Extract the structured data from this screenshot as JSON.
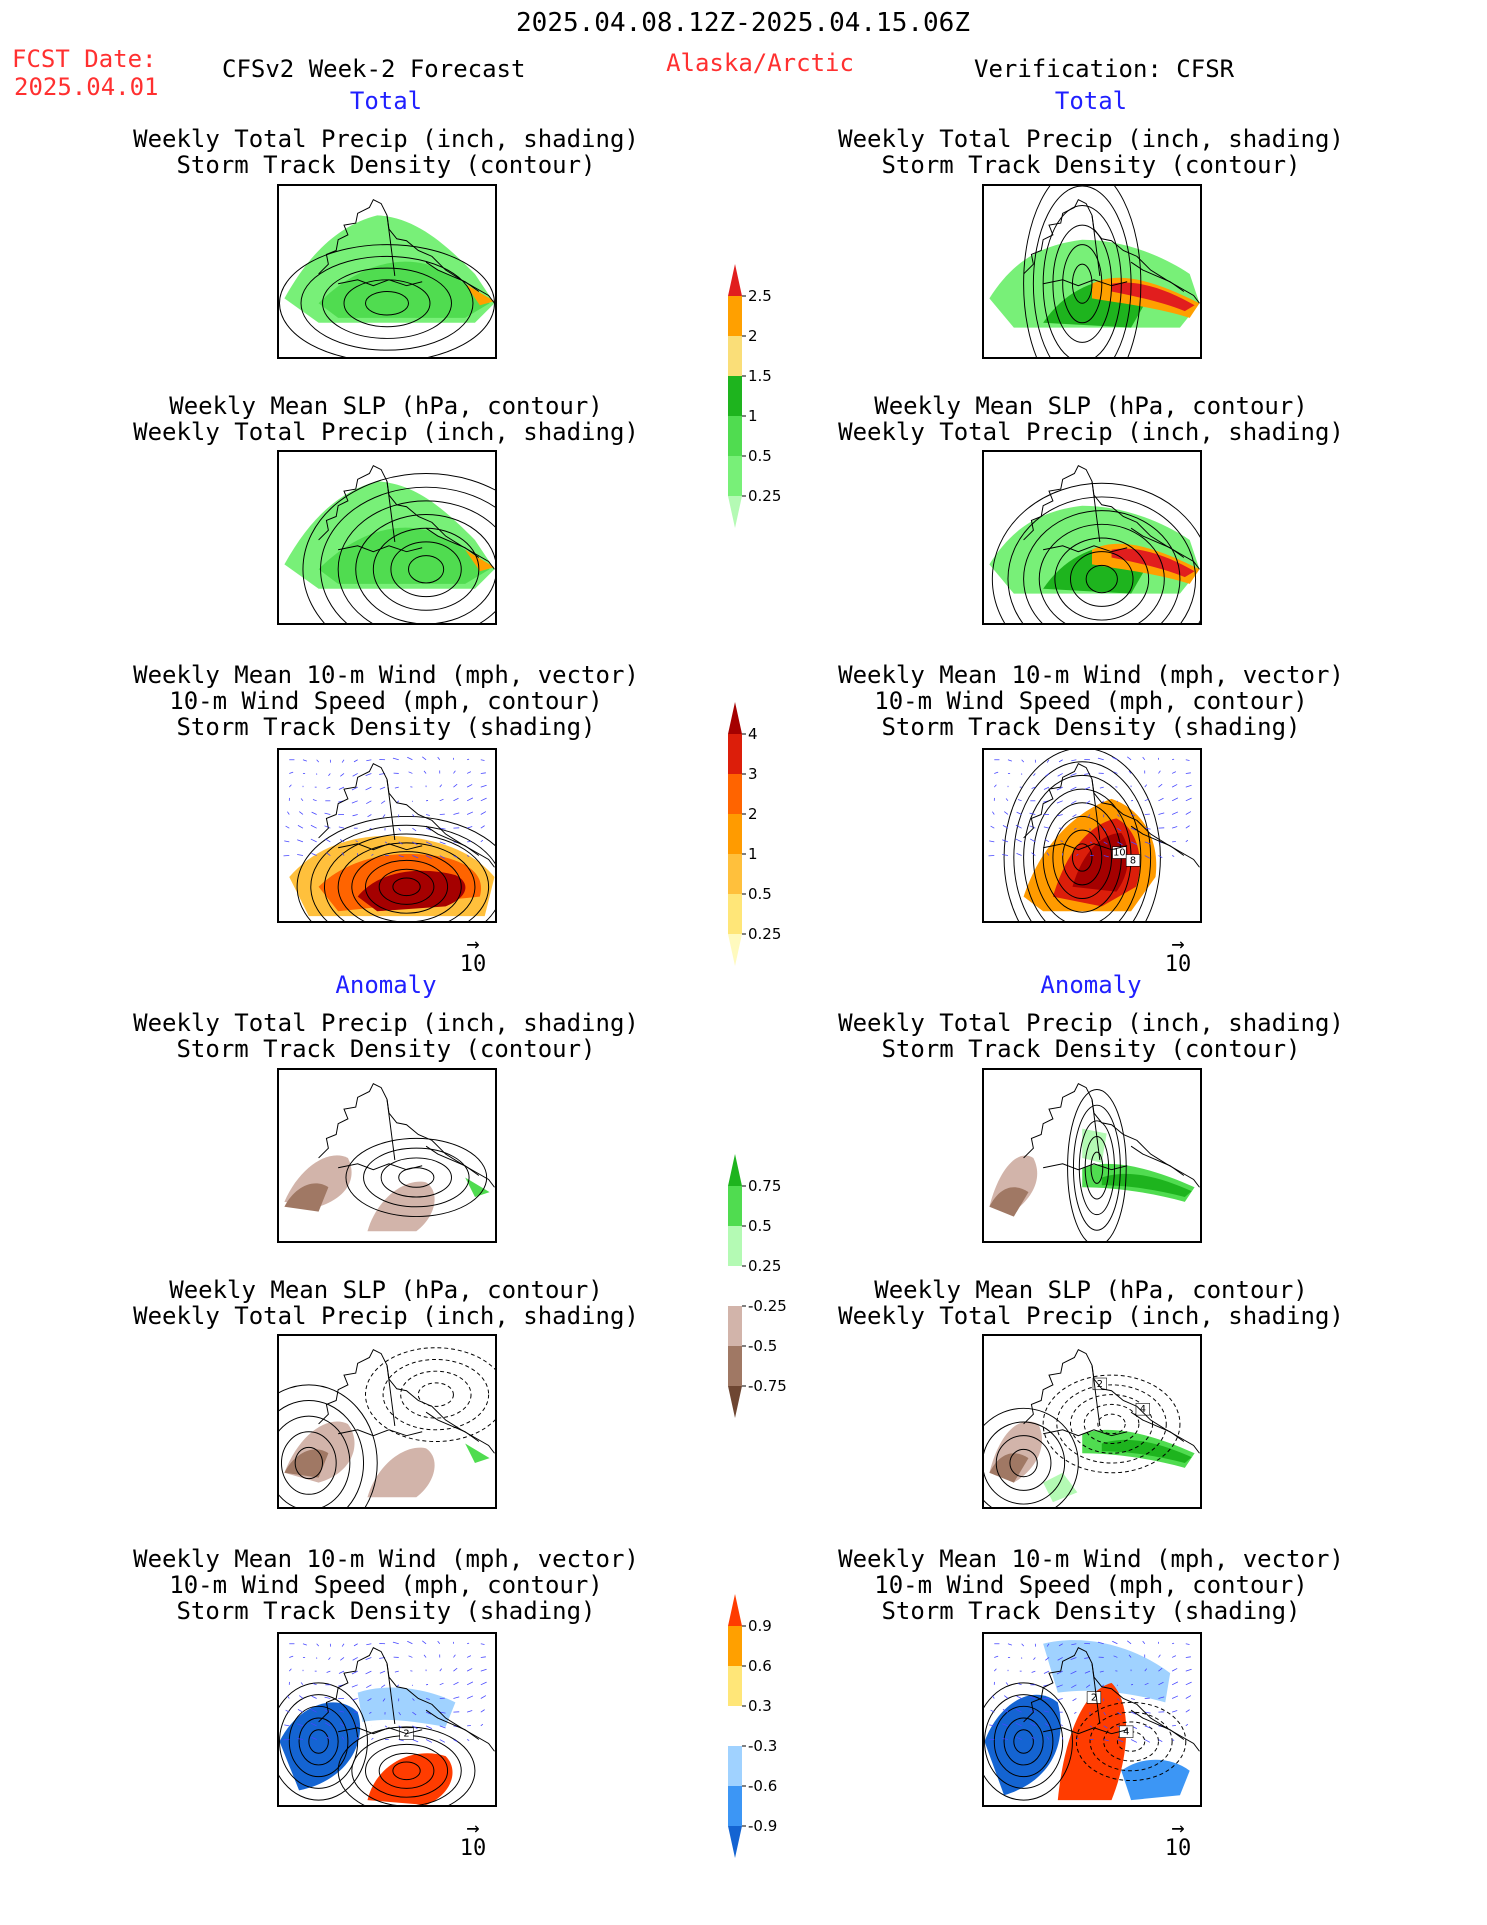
{
  "header": {
    "date_range": "2025.04.08.12Z-2025.04.15.06Z",
    "fcst_label": "FCST Date:",
    "fcst_date": "2025.04.01",
    "model_label": "CFSv2 Week-2 Forecast",
    "region": "Alaska/Arctic",
    "verification": "Verification: CFSR"
  },
  "sections": {
    "total": "Total",
    "anomaly": "Anomaly"
  },
  "panel_titles": {
    "precip_storm": "Weekly Total Precip (inch, shading)\nStorm Track Density (contour)",
    "slp_precip": "Weekly Mean SLP (hPa, contour)\nWeekly Total Precip (inch, shading)",
    "wind_storm": "Weekly Mean 10-m Wind (mph, vector)\n10-m Wind Speed (mph, contour)\nStorm Track Density (shading)"
  },
  "vector_reference": "10",
  "contour_labels": {
    "cfsr_total_wind": [
      "10",
      "8"
    ],
    "cfsr_anom_slp": [
      "2",
      "4"
    ],
    "cfsr_anom_wind": [
      "2",
      "4"
    ],
    "fcst_anom_wind": [
      "2"
    ]
  },
  "colors": {
    "fcst_red": "#ff3030",
    "section_blue": "#2020ff"
  },
  "chart_data": [
    {
      "type": "heatmap",
      "name": "colorbar_total_precip",
      "levels": [
        "0.25",
        "0.5",
        "1",
        "1.5",
        "2",
        "2.5"
      ],
      "colors": [
        "#b4fab4",
        "#78f078",
        "#50dc50",
        "#1eb41e",
        "#fade78",
        "#ffa000",
        "#e11e1e"
      ]
    },
    {
      "type": "heatmap",
      "name": "colorbar_total_storm_density",
      "levels": [
        "0.25",
        "0.5",
        "1",
        "2",
        "3",
        "4"
      ],
      "colors": [
        "#fffabe",
        "#ffe678",
        "#ffc03c",
        "#ff9b00",
        "#ff6400",
        "#dc1e0a",
        "#a50000"
      ]
    },
    {
      "type": "heatmap",
      "name": "colorbar_anomaly_precip",
      "levels": [
        "-0.75",
        "-0.5",
        "-0.25",
        "0.25",
        "0.5",
        "0.75"
      ],
      "colors": [
        "#6e4632",
        "#a07864",
        "#d2b4aa",
        "#ffffff",
        "#b4fab4",
        "#50dc50",
        "#1eb41e"
      ]
    },
    {
      "type": "heatmap",
      "name": "colorbar_anomaly_storm_density",
      "levels": [
        "-0.9",
        "-0.6",
        "-0.3",
        "0.3",
        "0.6",
        "0.9"
      ],
      "colors": [
        "#1464d2",
        "#3c96f5",
        "#a0d2ff",
        "#ffffff",
        "#ffe678",
        "#ffa000",
        "#ff3c00"
      ]
    }
  ]
}
